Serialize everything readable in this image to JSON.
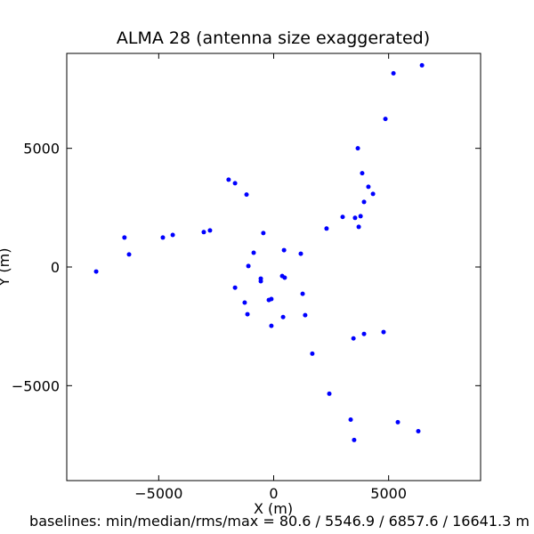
{
  "chart_data": {
    "type": "scatter",
    "title": "ALMA 28 (antenna size exaggerated)",
    "x_label": "X (m)",
    "y_label": "Y (m)",
    "footer": "baselines: min/median/rms/max = 80.6 / 5546.9 / 6857.6 / 16641.3 m",
    "color": "#0000ff",
    "xlim": [
      -9000,
      9000
    ],
    "ylim": [
      -9000,
      9000
    ],
    "xticks": [
      {
        "value": -5000,
        "label": "−5000"
      },
      0,
      5000
    ],
    "yticks": [
      {
        "value": -5000,
        "label": "−5000"
      },
      0,
      5000
    ],
    "x": [
      6450,
      5210,
      4860,
      3660,
      3850,
      4120,
      4320,
      3930,
      3780,
      3540,
      3000,
      3700,
      2300,
      -1960,
      -1680,
      -1180,
      -450,
      -2770,
      -3040,
      -4390,
      -4820,
      -6490,
      -6290,
      -7720,
      -870,
      450,
      1180,
      -1100,
      370,
      480,
      -560,
      -560,
      -1680,
      1260,
      -100,
      -210,
      -1260,
      -1140,
      410,
      1370,
      -100,
      4780,
      3930,
      3470,
      1680,
      2420,
      3350,
      5400,
      6290,
      3500
    ],
    "y": [
      8500,
      8160,
      6240,
      5000,
      3950,
      3380,
      3080,
      2740,
      2140,
      2070,
      2110,
      1690,
      1620,
      3680,
      3530,
      3050,
      1430,
      1540,
      1470,
      1350,
      1240,
      1240,
      530,
      -190,
      600,
      710,
      560,
      40,
      -380,
      -450,
      -490,
      -600,
      -870,
      -1130,
      -1350,
      -1390,
      -1500,
      -1990,
      -2110,
      -2030,
      -2480,
      -2740,
      -2820,
      -3010,
      -3650,
      -5340,
      -6430,
      -6540,
      -6920,
      -7290
    ]
  }
}
